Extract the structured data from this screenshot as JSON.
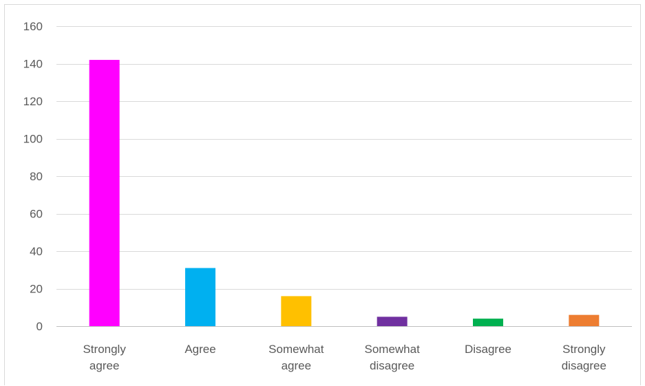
{
  "chart_data": {
    "type": "bar",
    "title": "",
    "xlabel": "",
    "ylabel": "",
    "categories": [
      [
        "Strongly",
        "agree"
      ],
      [
        "Agree"
      ],
      [
        "Somewhat",
        "agree"
      ],
      [
        "Somewhat",
        "disagree"
      ],
      [
        "Disagree"
      ],
      [
        "Strongly",
        "disagree"
      ]
    ],
    "values": [
      142,
      31,
      16,
      5,
      4,
      6
    ],
    "colors": [
      "#ff00ff",
      "#00b0f0",
      "#ffc000",
      "#7030a0",
      "#00b050",
      "#ed7d31"
    ],
    "ylim": [
      0,
      160
    ],
    "yticks": [
      "0",
      "20",
      "40",
      "60",
      "80",
      "100",
      "120",
      "140",
      "160"
    ],
    "grid": true,
    "legend": "none"
  }
}
